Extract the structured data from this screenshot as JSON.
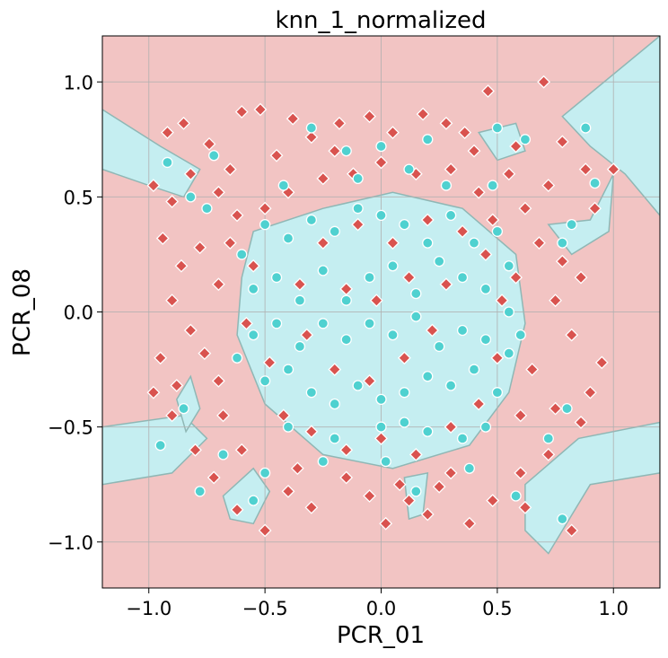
{
  "chart_data": {
    "type": "scatter",
    "title": "knn_1_normalized",
    "xlabel": "PCR_01",
    "ylabel": "PCR_08",
    "xlim": [
      -1.2,
      1.2
    ],
    "ylim": [
      -1.2,
      1.2
    ],
    "grid": true,
    "x_ticks": [
      {
        "value": -1.0,
        "label": "−1.0"
      },
      {
        "value": -0.5,
        "label": "−0.5"
      },
      {
        "value": 0.0,
        "label": "0.0"
      },
      {
        "value": 0.5,
        "label": "0.5"
      },
      {
        "value": 1.0,
        "label": "1.0"
      }
    ],
    "y_ticks": [
      {
        "value": -1.0,
        "label": "−1.0"
      },
      {
        "value": -0.5,
        "label": "−0.5"
      },
      {
        "value": 0.0,
        "label": "0.0"
      },
      {
        "value": 0.5,
        "label": "0.5"
      },
      {
        "value": 1.0,
        "label": "1.0"
      }
    ],
    "colors": {
      "negative_region": "#f2c4c3",
      "positive_region": "#c5eef1",
      "region_border": "#8fb7b5",
      "negative_marker": "#d9534f",
      "positive_marker": "#4fd1d0",
      "grid": "#b0b0b0"
    },
    "regions": [
      {
        "class": "positive",
        "polygon": [
          [
            -0.55,
            0.35
          ],
          [
            -0.25,
            0.45
          ],
          [
            0.05,
            0.52
          ],
          [
            0.35,
            0.45
          ],
          [
            0.58,
            0.25
          ],
          [
            0.62,
            -0.05
          ],
          [
            0.55,
            -0.35
          ],
          [
            0.38,
            -0.58
          ],
          [
            0.05,
            -0.68
          ],
          [
            -0.25,
            -0.62
          ],
          [
            -0.5,
            -0.4
          ],
          [
            -0.62,
            -0.1
          ],
          [
            -0.6,
            0.15
          ]
        ]
      },
      {
        "class": "positive",
        "polygon": [
          [
            -1.2,
            0.88
          ],
          [
            -0.95,
            0.72
          ],
          [
            -0.78,
            0.62
          ],
          [
            -0.85,
            0.5
          ],
          [
            -1.0,
            0.55
          ],
          [
            -1.2,
            0.62
          ]
        ]
      },
      {
        "class": "positive",
        "polygon": [
          [
            -1.2,
            -0.5
          ],
          [
            -0.85,
            -0.45
          ],
          [
            -0.75,
            -0.55
          ],
          [
            -0.9,
            -0.7
          ],
          [
            -1.2,
            -0.75
          ]
        ]
      },
      {
        "class": "positive",
        "polygon": [
          [
            0.78,
            0.85
          ],
          [
            1.2,
            1.2
          ],
          [
            1.2,
            0.42
          ],
          [
            1.05,
            0.6
          ],
          [
            0.9,
            0.72
          ]
        ]
      },
      {
        "class": "positive",
        "polygon": [
          [
            0.62,
            -0.75
          ],
          [
            0.85,
            -0.55
          ],
          [
            1.2,
            -0.48
          ],
          [
            1.2,
            -0.7
          ],
          [
            0.9,
            -0.75
          ],
          [
            0.72,
            -1.05
          ],
          [
            0.62,
            -0.95
          ]
        ]
      },
      {
        "class": "positive",
        "polygon": [
          [
            -0.68,
            -0.8
          ],
          [
            -0.55,
            -0.68
          ],
          [
            -0.48,
            -0.78
          ],
          [
            -0.55,
            -0.92
          ],
          [
            -0.65,
            -0.9
          ]
        ]
      },
      {
        "class": "positive",
        "polygon": [
          [
            -0.88,
            -0.38
          ],
          [
            -0.82,
            -0.28
          ],
          [
            -0.78,
            -0.42
          ],
          [
            -0.84,
            -0.52
          ]
        ]
      },
      {
        "class": "positive",
        "polygon": [
          [
            0.1,
            -0.72
          ],
          [
            0.2,
            -0.7
          ],
          [
            0.18,
            -0.88
          ],
          [
            0.12,
            -0.9
          ]
        ]
      },
      {
        "class": "positive",
        "polygon": [
          [
            0.42,
            0.78
          ],
          [
            0.58,
            0.82
          ],
          [
            0.62,
            0.7
          ],
          [
            0.5,
            0.66
          ]
        ]
      },
      {
        "class": "positive",
        "polygon": [
          [
            0.72,
            0.38
          ],
          [
            0.9,
            0.4
          ],
          [
            1.0,
            0.6
          ],
          [
            0.98,
            0.35
          ],
          [
            0.82,
            0.25
          ]
        ]
      }
    ],
    "series": [
      {
        "name": "",
        "class": "negative",
        "marker": "diamond",
        "points": [
          [
            -0.92,
            0.78
          ],
          [
            -0.85,
            0.82
          ],
          [
            -0.74,
            0.73
          ],
          [
            -0.6,
            0.87
          ],
          [
            -0.52,
            0.88
          ],
          [
            -0.38,
            0.84
          ],
          [
            -0.3,
            0.76
          ],
          [
            -0.18,
            0.82
          ],
          [
            -0.05,
            0.85
          ],
          [
            0.05,
            0.78
          ],
          [
            0.18,
            0.86
          ],
          [
            0.28,
            0.82
          ],
          [
            0.36,
            0.78
          ],
          [
            0.46,
            0.96
          ],
          [
            0.58,
            0.72
          ],
          [
            0.7,
            1.0
          ],
          [
            0.78,
            0.74
          ],
          [
            0.88,
            0.62
          ],
          [
            1.0,
            0.62
          ],
          [
            -0.98,
            0.55
          ],
          [
            -0.9,
            0.48
          ],
          [
            -0.82,
            0.6
          ],
          [
            -0.7,
            0.52
          ],
          [
            -0.62,
            0.42
          ],
          [
            -0.94,
            0.32
          ],
          [
            -0.86,
            0.2
          ],
          [
            -0.78,
            0.28
          ],
          [
            -0.7,
            0.12
          ],
          [
            -0.9,
            0.05
          ],
          [
            -0.82,
            -0.08
          ],
          [
            -0.95,
            -0.2
          ],
          [
            -0.88,
            -0.32
          ],
          [
            -0.76,
            -0.18
          ],
          [
            -0.7,
            -0.3
          ],
          [
            -0.9,
            -0.45
          ],
          [
            -0.8,
            -0.6
          ],
          [
            -0.72,
            -0.72
          ],
          [
            -0.62,
            -0.86
          ],
          [
            -0.5,
            -0.95
          ],
          [
            -0.4,
            -0.78
          ],
          [
            -0.3,
            -0.85
          ],
          [
            -0.15,
            -0.72
          ],
          [
            -0.05,
            -0.8
          ],
          [
            0.02,
            -0.92
          ],
          [
            0.12,
            -0.82
          ],
          [
            0.25,
            -0.76
          ],
          [
            0.38,
            -0.92
          ],
          [
            0.48,
            -0.82
          ],
          [
            0.6,
            -0.7
          ],
          [
            0.72,
            -0.62
          ],
          [
            0.82,
            -0.95
          ],
          [
            0.86,
            -0.48
          ],
          [
            0.9,
            -0.35
          ],
          [
            0.95,
            -0.22
          ],
          [
            0.82,
            -0.1
          ],
          [
            0.75,
            0.05
          ],
          [
            0.86,
            0.15
          ],
          [
            0.78,
            0.22
          ],
          [
            0.68,
            0.3
          ],
          [
            0.62,
            0.45
          ],
          [
            0.72,
            0.55
          ],
          [
            0.55,
            0.6
          ],
          [
            0.42,
            0.52
          ],
          [
            0.3,
            0.62
          ],
          [
            0.15,
            0.6
          ],
          [
            0.0,
            0.65
          ],
          [
            -0.12,
            0.6
          ],
          [
            -0.25,
            0.58
          ],
          [
            -0.4,
            0.52
          ],
          [
            -0.5,
            0.45
          ],
          [
            -0.55,
            0.2
          ],
          [
            -0.58,
            -0.05
          ],
          [
            -0.48,
            -0.22
          ],
          [
            -0.42,
            -0.45
          ],
          [
            -0.3,
            -0.52
          ],
          [
            -0.15,
            -0.6
          ],
          [
            0.0,
            -0.55
          ],
          [
            0.15,
            -0.62
          ],
          [
            0.3,
            -0.5
          ],
          [
            0.42,
            -0.4
          ],
          [
            0.5,
            -0.2
          ],
          [
            0.52,
            0.05
          ],
          [
            0.45,
            0.25
          ],
          [
            0.35,
            0.35
          ],
          [
            0.2,
            0.4
          ],
          [
            0.05,
            0.3
          ],
          [
            -0.1,
            0.38
          ],
          [
            -0.25,
            0.3
          ],
          [
            -0.35,
            0.12
          ],
          [
            -0.32,
            -0.1
          ],
          [
            -0.2,
            -0.25
          ],
          [
            -0.05,
            -0.3
          ],
          [
            0.1,
            -0.2
          ],
          [
            0.22,
            -0.08
          ],
          [
            0.28,
            0.12
          ],
          [
            0.12,
            0.15
          ],
          [
            -0.02,
            0.05
          ],
          [
            -0.15,
            0.1
          ],
          [
            0.6,
            -0.45
          ],
          [
            0.65,
            -0.25
          ],
          [
            0.58,
            0.15
          ],
          [
            -0.65,
            0.3
          ],
          [
            -0.68,
            -0.45
          ],
          [
            0.4,
            0.7
          ],
          [
            -0.45,
            0.68
          ],
          [
            -0.65,
            0.62
          ],
          [
            0.2,
            -0.88
          ],
          [
            0.62,
            -0.85
          ],
          [
            0.75,
            -0.42
          ],
          [
            0.92,
            0.45
          ],
          [
            -0.98,
            -0.35
          ],
          [
            -0.6,
            -0.6
          ],
          [
            0.48,
            0.4
          ],
          [
            -0.2,
            0.7
          ],
          [
            0.08,
            -0.75
          ],
          [
            -0.36,
            -0.68
          ],
          [
            0.3,
            -0.7
          ]
        ]
      },
      {
        "name": "",
        "class": "positive",
        "marker": "circle",
        "points": [
          [
            -0.92,
            0.65
          ],
          [
            -0.72,
            0.68
          ],
          [
            -0.3,
            0.8
          ],
          [
            -0.15,
            0.7
          ],
          [
            0.0,
            0.72
          ],
          [
            0.2,
            0.75
          ],
          [
            0.5,
            0.8
          ],
          [
            0.62,
            0.75
          ],
          [
            0.88,
            0.8
          ],
          [
            0.92,
            0.56
          ],
          [
            -0.82,
            0.5
          ],
          [
            -0.75,
            0.45
          ],
          [
            -0.5,
            0.38
          ],
          [
            -0.4,
            0.32
          ],
          [
            -0.3,
            0.4
          ],
          [
            -0.2,
            0.35
          ],
          [
            -0.1,
            0.45
          ],
          [
            0.0,
            0.42
          ],
          [
            0.1,
            0.38
          ],
          [
            0.2,
            0.3
          ],
          [
            0.3,
            0.42
          ],
          [
            0.4,
            0.3
          ],
          [
            0.5,
            0.35
          ],
          [
            0.55,
            0.2
          ],
          [
            -0.55,
            0.1
          ],
          [
            -0.45,
            0.15
          ],
          [
            -0.35,
            0.05
          ],
          [
            -0.25,
            0.18
          ],
          [
            -0.15,
            0.05
          ],
          [
            -0.05,
            0.15
          ],
          [
            0.05,
            0.2
          ],
          [
            0.15,
            0.08
          ],
          [
            0.25,
            0.22
          ],
          [
            0.35,
            0.15
          ],
          [
            0.45,
            0.1
          ],
          [
            0.55,
            0.0
          ],
          [
            -0.55,
            -0.1
          ],
          [
            -0.45,
            -0.05
          ],
          [
            -0.35,
            -0.15
          ],
          [
            -0.25,
            -0.05
          ],
          [
            -0.15,
            -0.12
          ],
          [
            -0.05,
            -0.05
          ],
          [
            0.05,
            -0.1
          ],
          [
            0.15,
            -0.02
          ],
          [
            0.25,
            -0.15
          ],
          [
            0.35,
            -0.08
          ],
          [
            0.45,
            -0.12
          ],
          [
            0.55,
            -0.18
          ],
          [
            -0.5,
            -0.3
          ],
          [
            -0.4,
            -0.25
          ],
          [
            -0.3,
            -0.35
          ],
          [
            -0.2,
            -0.4
          ],
          [
            -0.1,
            -0.32
          ],
          [
            0.0,
            -0.38
          ],
          [
            0.1,
            -0.35
          ],
          [
            0.2,
            -0.28
          ],
          [
            0.3,
            -0.32
          ],
          [
            0.4,
            -0.25
          ],
          [
            0.5,
            -0.35
          ],
          [
            -0.4,
            -0.5
          ],
          [
            -0.2,
            -0.55
          ],
          [
            0.0,
            -0.5
          ],
          [
            0.1,
            -0.48
          ],
          [
            0.2,
            -0.52
          ],
          [
            0.35,
            -0.55
          ],
          [
            0.45,
            -0.5
          ],
          [
            -0.85,
            -0.42
          ],
          [
            -0.95,
            -0.58
          ],
          [
            -0.78,
            -0.78
          ],
          [
            -0.55,
            -0.82
          ],
          [
            -0.5,
            -0.7
          ],
          [
            0.15,
            -0.78
          ],
          [
            0.38,
            -0.68
          ],
          [
            0.58,
            -0.8
          ],
          [
            0.78,
            -0.9
          ],
          [
            0.72,
            -0.55
          ],
          [
            0.8,
            -0.42
          ],
          [
            0.78,
            0.3
          ],
          [
            0.82,
            0.38
          ],
          [
            -0.6,
            0.25
          ],
          [
            -0.62,
            -0.2
          ],
          [
            0.6,
            -0.1
          ],
          [
            -0.25,
            -0.65
          ],
          [
            0.02,
            -0.65
          ],
          [
            0.28,
            0.55
          ],
          [
            -0.1,
            0.58
          ],
          [
            -0.42,
            0.55
          ],
          [
            0.12,
            0.62
          ],
          [
            0.48,
            0.55
          ],
          [
            -0.68,
            -0.62
          ]
        ]
      }
    ]
  }
}
